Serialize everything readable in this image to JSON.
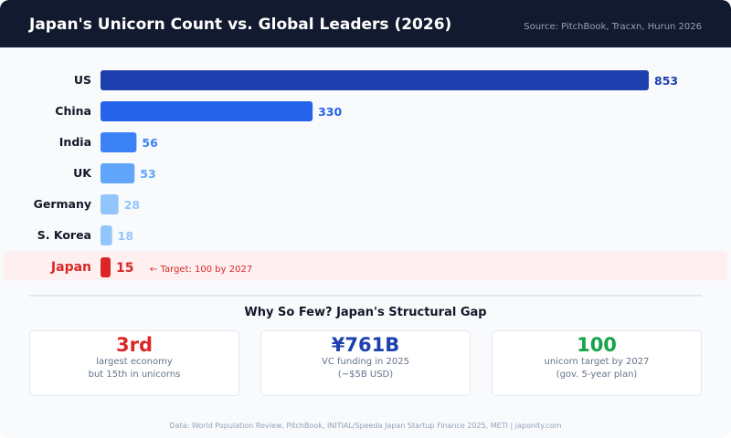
{
  "header": {
    "title": "Japan's Unicorn Count vs. Global Leaders (2026)",
    "source": "Source: PitchBook, Tracxn, Hurun 2026"
  },
  "chart_data": {
    "type": "bar",
    "orientation": "horizontal",
    "categories": [
      "US",
      "China",
      "India",
      "UK",
      "Germany",
      "S. Korea",
      "Japan"
    ],
    "values": [
      853,
      330,
      56,
      53,
      28,
      18,
      15
    ],
    "colors": [
      "#1e40af",
      "#2563eb",
      "#3b82f6",
      "#60a5fa",
      "#93c5fd",
      "#93c5fd",
      "#dc2626"
    ],
    "highlight": "Japan",
    "highlight_color": "#dc2626",
    "annotation": "← Target: 100 by 2027",
    "title": "",
    "xlabel": "",
    "ylabel": "",
    "grid": false
  },
  "section": {
    "title": "Why So Few? Japan's Structural Gap"
  },
  "stats": [
    {
      "value": "3rd",
      "line1": "largest economy",
      "line2": "but 15th in unicorns",
      "color": "#dc2626"
    },
    {
      "value": "¥761B",
      "line1": "VC funding in 2025",
      "line2": "(~$5B USD)",
      "color": "#1e40af"
    },
    {
      "value": "100",
      "line1": "unicorn target by 2027",
      "line2": "(gov. 5-year plan)",
      "color": "#16a34a"
    }
  ],
  "footer": "Data: World Population Review, PitchBook, INITIAL/Speeda Japan Startup Finance 2025, METI | japonity.com"
}
